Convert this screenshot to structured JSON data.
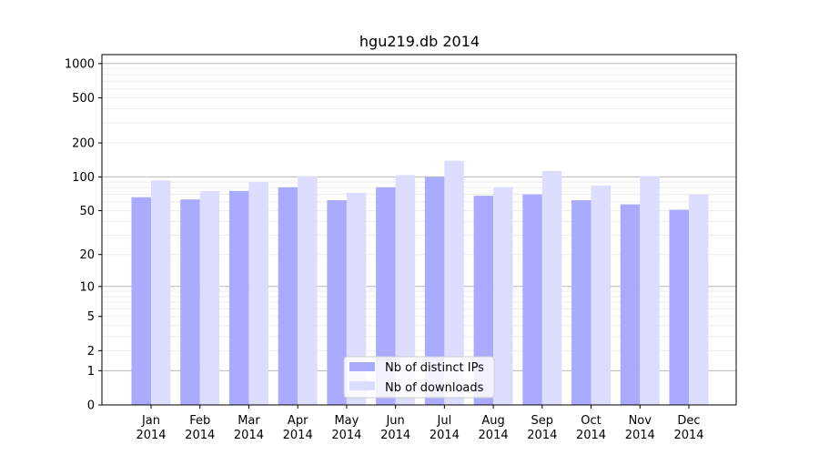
{
  "chart_data": {
    "type": "bar",
    "title": "hgu219.db 2014",
    "xlabel": "",
    "ylabel": "",
    "y_scale": "symlog",
    "ylim": [
      0,
      1200
    ],
    "y_ticks": [
      0,
      1,
      2,
      5,
      10,
      20,
      50,
      100,
      200,
      500,
      1000
    ],
    "grid": true,
    "legend_position": "bottom-center",
    "categories": [
      [
        "Jan",
        "2014"
      ],
      [
        "Feb",
        "2014"
      ],
      [
        "Mar",
        "2014"
      ],
      [
        "Apr",
        "2014"
      ],
      [
        "May",
        "2014"
      ],
      [
        "Jun",
        "2014"
      ],
      [
        "Jul",
        "2014"
      ],
      [
        "Aug",
        "2014"
      ],
      [
        "Sep",
        "2014"
      ],
      [
        "Oct",
        "2014"
      ],
      [
        "Nov",
        "2014"
      ],
      [
        "Dec",
        "2014"
      ]
    ],
    "series": [
      {
        "name": "Nb of distinct IPs",
        "color": "#aaaaff",
        "values": [
          66,
          63,
          75,
          81,
          62,
          81,
          100,
          68,
          70,
          62,
          57,
          51
        ]
      },
      {
        "name": "Nb of downloads",
        "color": "#ddddff",
        "values": [
          93,
          75,
          90,
          101,
          72,
          104,
          139,
          81,
          113,
          84,
          102,
          70
        ]
      }
    ]
  }
}
